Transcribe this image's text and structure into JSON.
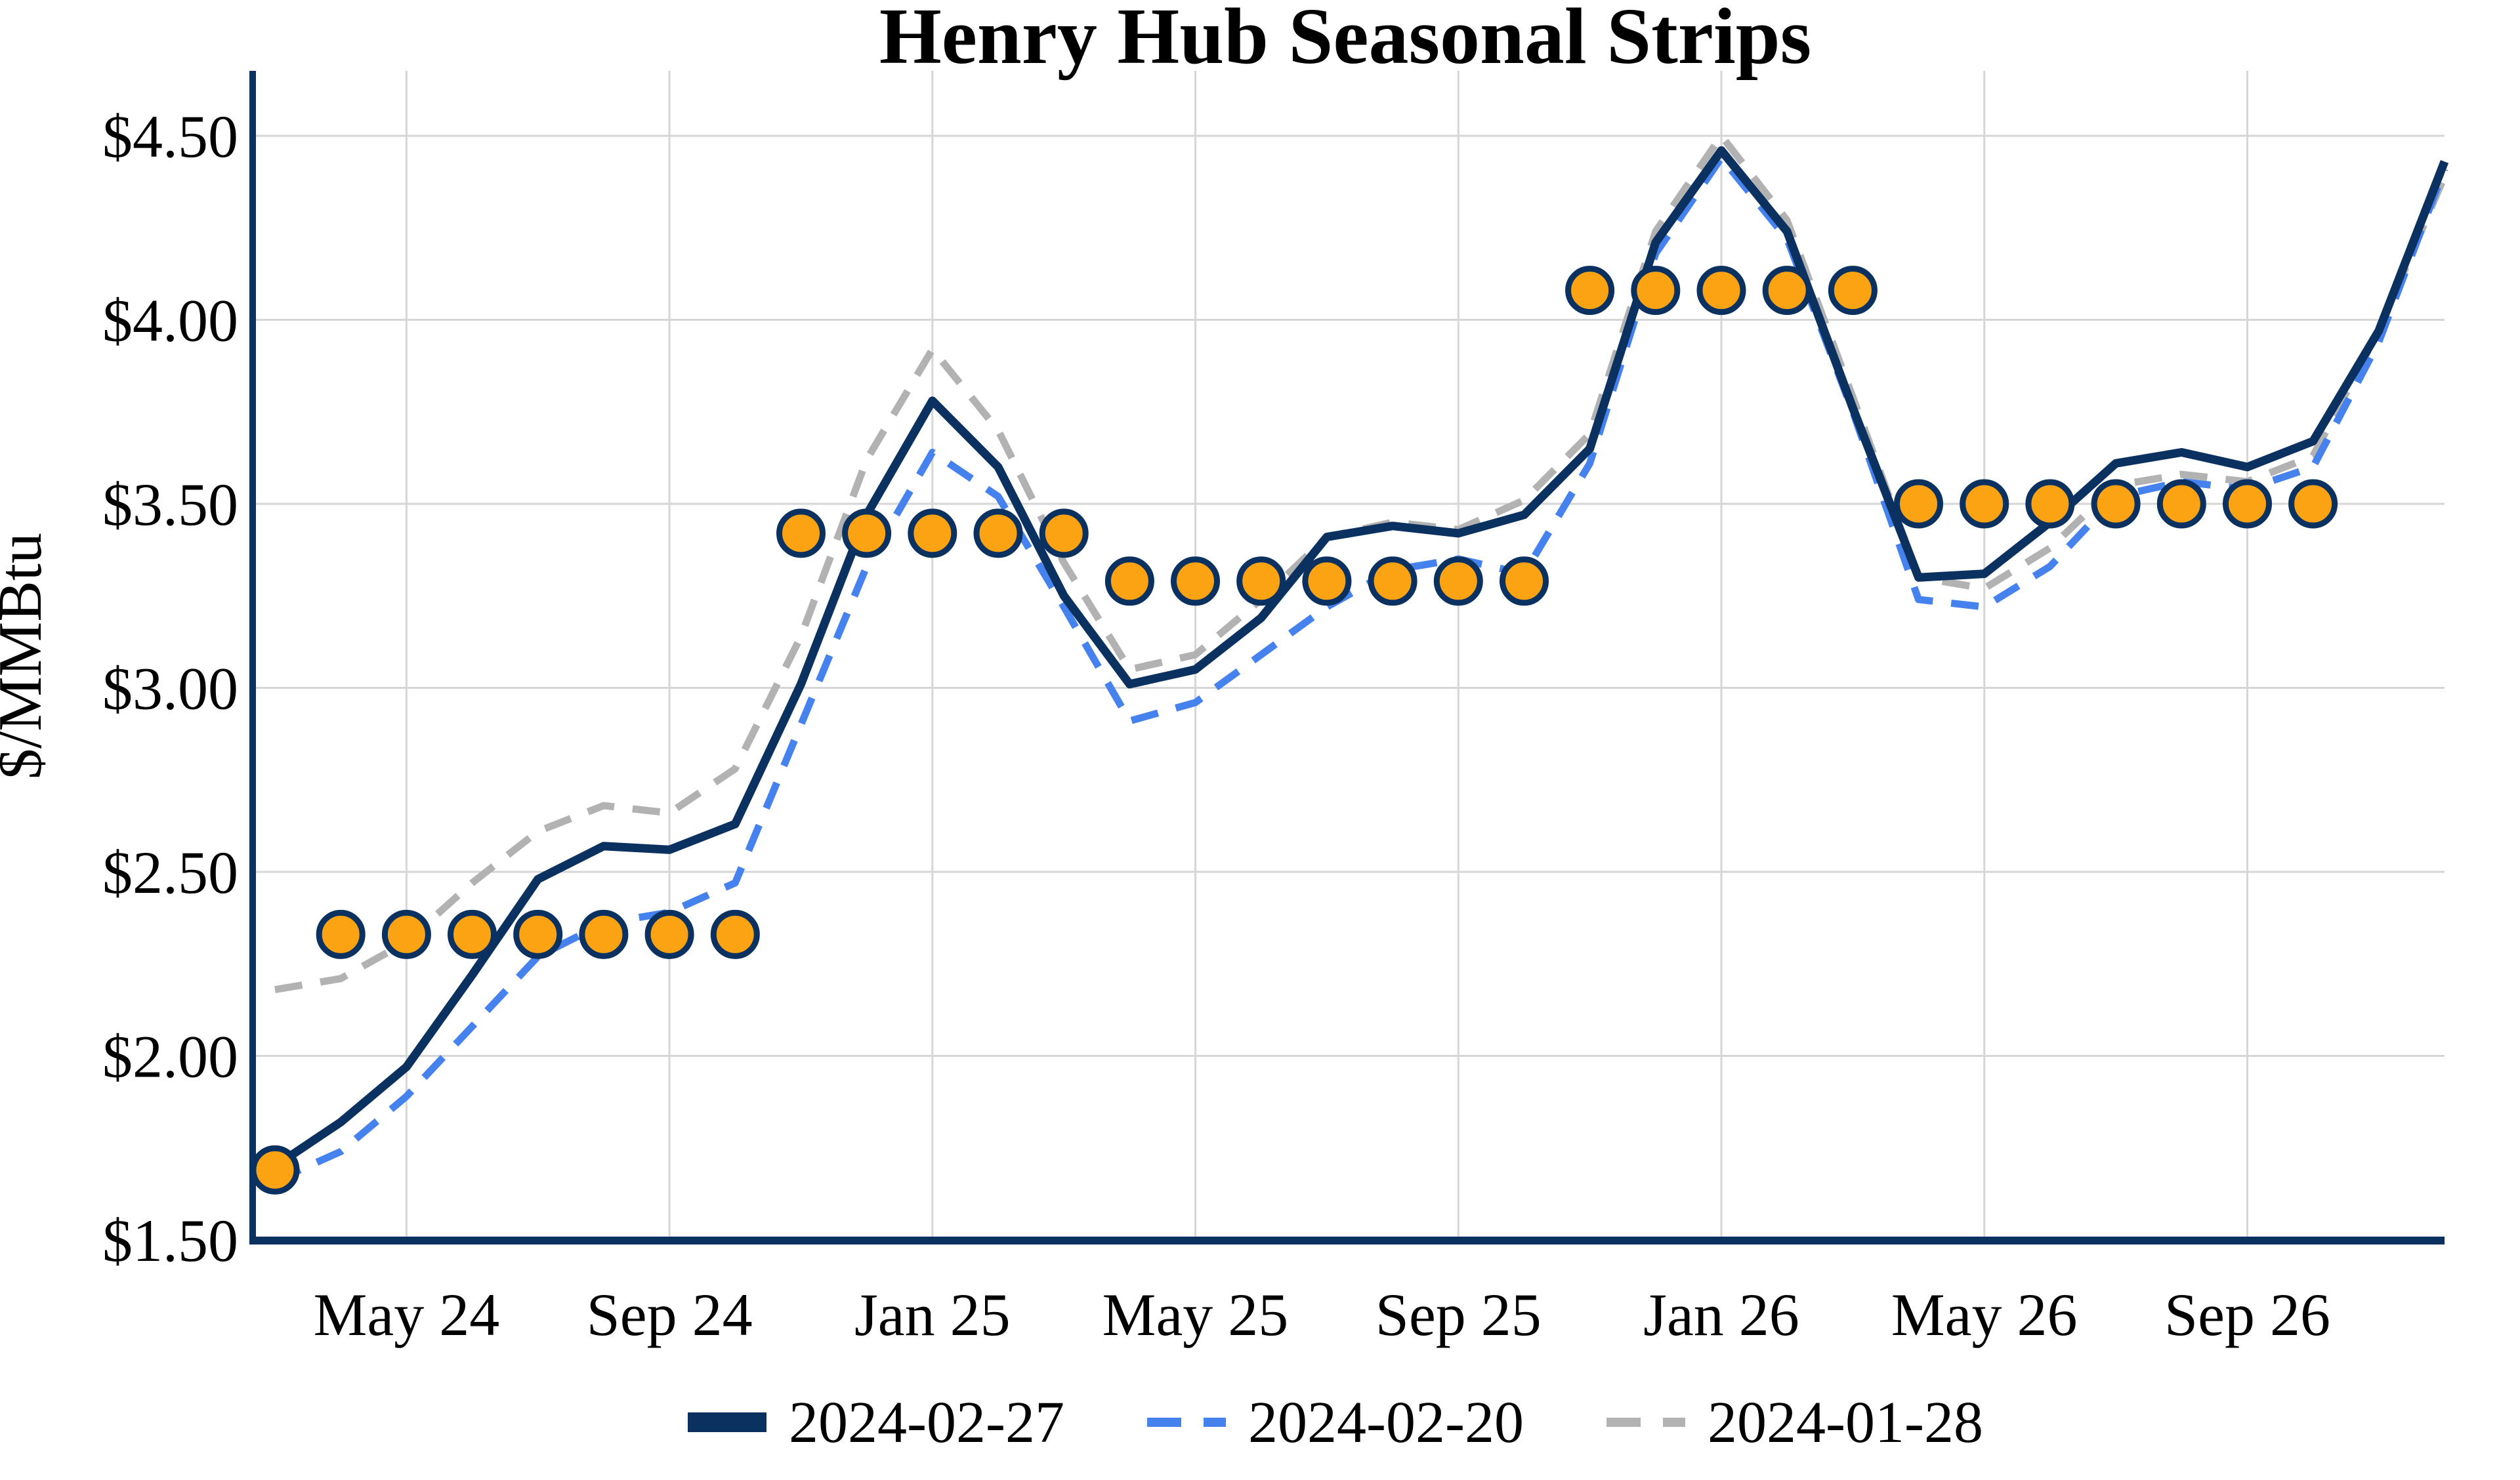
{
  "title": "Henry Hub Seasonal Strips",
  "colors": {
    "navy": "#0b3160",
    "blue": "#4582ee",
    "gray": "#b2b2b2",
    "orange": "#fba313",
    "marker_edge": "#0b3160",
    "grid": "#d6d6d6",
    "spine": "#0b3160",
    "background": "#ffffff",
    "text": "#000000"
  },
  "legend": {
    "items": [
      {
        "label": "2024-02-27",
        "style": "solid",
        "color_key": "navy"
      },
      {
        "label": "2024-02-20",
        "style": "dashed",
        "color_key": "blue"
      },
      {
        "label": "2024-01-28",
        "style": "dashed",
        "color_key": "gray"
      }
    ]
  },
  "chart_data": {
    "type": "line",
    "title": "Henry Hub Seasonal Strips",
    "xlabel": "",
    "ylabel": "$/MMBtu",
    "ylim": [
      1.5,
      4.68
    ],
    "grid": true,
    "legend_position": "bottom-center",
    "x": [
      "Mar 24",
      "Apr 24",
      "May 24",
      "Jun 24",
      "Jul 24",
      "Aug 24",
      "Sep 24",
      "Oct 24",
      "Nov 24",
      "Dec 24",
      "Jan 25",
      "Feb 25",
      "Mar 25",
      "Apr 25",
      "May 25",
      "Jun 25",
      "Jul 25",
      "Aug 25",
      "Sep 25",
      "Oct 25",
      "Nov 25",
      "Dec 25",
      "Jan 26",
      "Feb 26",
      "Mar 26",
      "Apr 26",
      "May 26",
      "Jun 26",
      "Jul 26",
      "Aug 26",
      "Sep 26",
      "Oct 26",
      "Nov 26",
      "Dec 26"
    ],
    "x_tick_labels": [
      "May 24",
      "Sep 24",
      "Jan 25",
      "May 25",
      "Sep 25",
      "Jan 26",
      "May 26",
      "Sep 26"
    ],
    "x_tick_month_indices": [
      2,
      6,
      10,
      14,
      18,
      22,
      26,
      30
    ],
    "y_tick_labels": [
      "$1.50",
      "$2.00",
      "$2.50",
      "$3.00",
      "$3.50",
      "$4.00",
      "$4.50"
    ],
    "y_tick_values": [
      1.5,
      2.0,
      2.5,
      3.0,
      3.5,
      4.0,
      4.5
    ],
    "series": [
      {
        "name": "2024-02-27",
        "style": "solid",
        "color_key": "navy",
        "line_width": 13,
        "values": [
          1.7,
          1.82,
          1.97,
          2.22,
          2.48,
          2.57,
          2.56,
          2.63,
          3.01,
          3.47,
          3.78,
          3.6,
          3.25,
          3.01,
          3.05,
          3.19,
          3.41,
          3.44,
          3.42,
          3.47,
          3.65,
          4.21,
          4.46,
          4.24,
          3.76,
          3.3,
          3.31,
          3.45,
          3.61,
          3.64,
          3.6,
          3.67,
          3.97,
          4.43
        ]
      },
      {
        "name": "2024-02-20",
        "style": "dashed",
        "color_key": "blue",
        "line_width": 11,
        "values": [
          1.66,
          1.74,
          1.89,
          2.08,
          2.27,
          2.36,
          2.39,
          2.47,
          2.9,
          3.33,
          3.64,
          3.52,
          3.22,
          2.91,
          2.96,
          3.09,
          3.22,
          3.32,
          3.35,
          3.31,
          3.61,
          4.18,
          4.44,
          4.22,
          3.75,
          3.24,
          3.22,
          3.33,
          3.52,
          3.56,
          3.54,
          3.6,
          3.94,
          4.41
        ]
      },
      {
        "name": "2024-01-28",
        "style": "dashed",
        "color_key": "gray",
        "line_width": 11,
        "values": [
          2.18,
          2.21,
          2.31,
          2.47,
          2.61,
          2.68,
          2.66,
          2.78,
          3.14,
          3.62,
          3.92,
          3.7,
          3.34,
          3.05,
          3.09,
          3.24,
          3.41,
          3.45,
          3.43,
          3.51,
          3.69,
          4.24,
          4.5,
          4.27,
          3.79,
          3.3,
          3.27,
          3.38,
          3.55,
          3.58,
          3.56,
          3.63,
          3.97,
          4.39
        ]
      }
    ],
    "markers": {
      "name": "seasonal strip dots",
      "shape": "circle",
      "radius": 33,
      "points": [
        {
          "x": "Mar 24",
          "value": 1.69
        },
        {
          "x": "Apr 24",
          "value": 2.33
        },
        {
          "x": "May 24",
          "value": 2.33
        },
        {
          "x": "Jun 24",
          "value": 2.33
        },
        {
          "x": "Jul 24",
          "value": 2.33
        },
        {
          "x": "Aug 24",
          "value": 2.33
        },
        {
          "x": "Sep 24",
          "value": 2.33
        },
        {
          "x": "Oct 24",
          "value": 2.33
        },
        {
          "x": "Nov 24",
          "value": 3.42
        },
        {
          "x": "Dec 24",
          "value": 3.42
        },
        {
          "x": "Jan 25",
          "value": 3.42
        },
        {
          "x": "Feb 25",
          "value": 3.42
        },
        {
          "x": "Mar 25",
          "value": 3.42
        },
        {
          "x": "Apr 25",
          "value": 3.29
        },
        {
          "x": "May 25",
          "value": 3.29
        },
        {
          "x": "Jun 25",
          "value": 3.29
        },
        {
          "x": "Jul 25",
          "value": 3.29
        },
        {
          "x": "Aug 25",
          "value": 3.29
        },
        {
          "x": "Sep 25",
          "value": 3.29
        },
        {
          "x": "Oct 25",
          "value": 3.29
        },
        {
          "x": "Nov 25",
          "value": 4.08
        },
        {
          "x": "Dec 25",
          "value": 4.08
        },
        {
          "x": "Jan 26",
          "value": 4.08
        },
        {
          "x": "Feb 26",
          "value": 4.08
        },
        {
          "x": "Mar 26",
          "value": 4.08
        },
        {
          "x": "Apr 26",
          "value": 3.5
        },
        {
          "x": "May 26",
          "value": 3.5
        },
        {
          "x": "Jun 26",
          "value": 3.5
        },
        {
          "x": "Jul 26",
          "value": 3.5
        },
        {
          "x": "Aug 26",
          "value": 3.5
        },
        {
          "x": "Sep 26",
          "value": 3.5
        },
        {
          "x": "Oct 26",
          "value": 3.5
        }
      ]
    }
  }
}
